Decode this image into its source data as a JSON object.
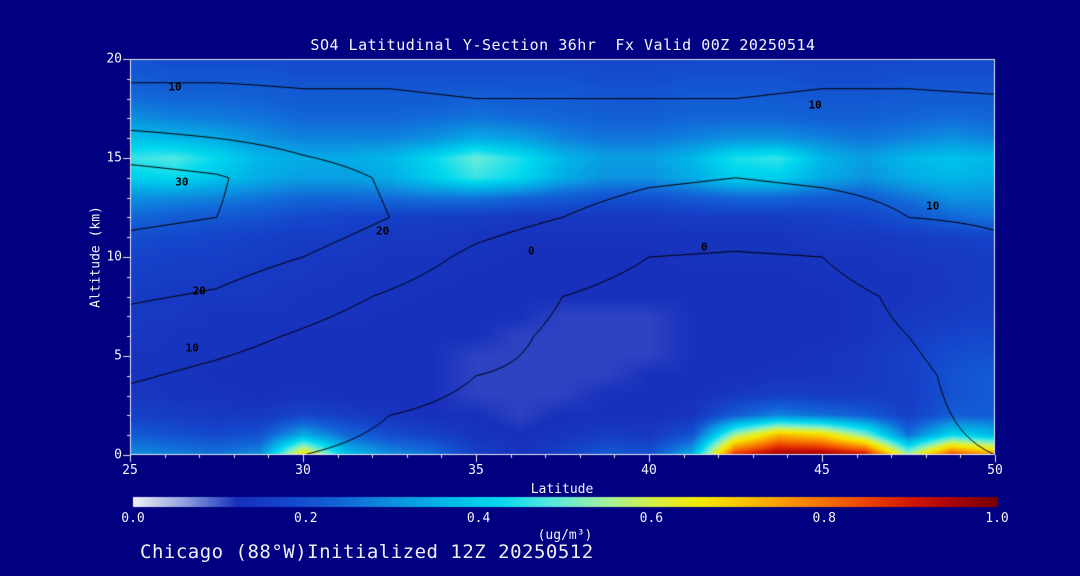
{
  "figure": {
    "bg_color": "#000080"
  },
  "chart_data": {
    "type": "heatmap",
    "title": "SO4 Latitudinal Y-Section 36hr  Fx Valid 00Z 20250514",
    "footer": "Chicago (88°W)Initialized 12Z 20250512",
    "xlabel": "Latitude",
    "ylabel": "Altitude (km)",
    "x_range": [
      25,
      50
    ],
    "y_range": [
      0,
      20
    ],
    "x_ticks": [
      25,
      30,
      35,
      40,
      45,
      50
    ],
    "x_tick_labels": [
      "25",
      "30",
      "35",
      "40",
      "45",
      "50"
    ],
    "y_ticks": [
      0,
      5,
      10,
      15,
      20
    ],
    "y_tick_labels": [
      "0",
      "5",
      "10",
      "15",
      "20"
    ],
    "x": [
      25,
      26.25,
      27.5,
      28.75,
      30,
      31.25,
      32.5,
      33.75,
      35,
      36.25,
      37.5,
      38.75,
      40,
      41.25,
      42.5,
      43.75,
      45,
      46.25,
      47.5,
      48.75,
      50
    ],
    "y": [
      0,
      1,
      2,
      3,
      4,
      5,
      6,
      7,
      8,
      9,
      10,
      11,
      12,
      13,
      14,
      15,
      16,
      17,
      18,
      19,
      20
    ],
    "values": [
      [
        0.3,
        0.28,
        0.26,
        0.3,
        0.68,
        0.38,
        0.3,
        0.26,
        0.16,
        0.13,
        0.16,
        0.22,
        0.2,
        0.35,
        0.88,
        0.97,
        0.97,
        0.92,
        0.55,
        0.85,
        0.75
      ],
      [
        0.22,
        0.2,
        0.18,
        0.2,
        0.34,
        0.24,
        0.19,
        0.16,
        0.13,
        0.12,
        0.13,
        0.15,
        0.14,
        0.2,
        0.55,
        0.72,
        0.68,
        0.52,
        0.25,
        0.42,
        0.36
      ],
      [
        0.16,
        0.15,
        0.14,
        0.14,
        0.17,
        0.15,
        0.13,
        0.12,
        0.12,
        0.11,
        0.12,
        0.12,
        0.12,
        0.13,
        0.22,
        0.28,
        0.25,
        0.22,
        0.16,
        0.22,
        0.22
      ],
      [
        0.14,
        0.13,
        0.13,
        0.12,
        0.13,
        0.12,
        0.12,
        0.12,
        0.11,
        0.11,
        0.11,
        0.12,
        0.12,
        0.12,
        0.14,
        0.16,
        0.15,
        0.15,
        0.15,
        0.2,
        0.22
      ],
      [
        0.13,
        0.13,
        0.12,
        0.12,
        0.12,
        0.12,
        0.12,
        0.12,
        0.11,
        0.11,
        0.11,
        0.11,
        0.12,
        0.12,
        0.12,
        0.13,
        0.13,
        0.14,
        0.16,
        0.2,
        0.22
      ],
      [
        0.13,
        0.13,
        0.13,
        0.12,
        0.12,
        0.12,
        0.12,
        0.12,
        0.11,
        0.11,
        0.11,
        0.11,
        0.11,
        0.12,
        0.12,
        0.12,
        0.13,
        0.14,
        0.16,
        0.19,
        0.2
      ],
      [
        0.14,
        0.13,
        0.13,
        0.13,
        0.12,
        0.12,
        0.12,
        0.12,
        0.12,
        0.11,
        0.11,
        0.11,
        0.11,
        0.12,
        0.12,
        0.12,
        0.12,
        0.13,
        0.15,
        0.17,
        0.18
      ],
      [
        0.14,
        0.14,
        0.13,
        0.13,
        0.13,
        0.13,
        0.12,
        0.12,
        0.12,
        0.12,
        0.11,
        0.11,
        0.11,
        0.12,
        0.12,
        0.12,
        0.12,
        0.13,
        0.14,
        0.15,
        0.16
      ],
      [
        0.15,
        0.14,
        0.14,
        0.14,
        0.13,
        0.13,
        0.13,
        0.12,
        0.12,
        0.12,
        0.12,
        0.12,
        0.12,
        0.12,
        0.12,
        0.12,
        0.12,
        0.13,
        0.13,
        0.14,
        0.15
      ],
      [
        0.16,
        0.15,
        0.15,
        0.14,
        0.14,
        0.13,
        0.13,
        0.13,
        0.12,
        0.12,
        0.12,
        0.12,
        0.12,
        0.12,
        0.12,
        0.12,
        0.13,
        0.13,
        0.13,
        0.14,
        0.15
      ],
      [
        0.17,
        0.16,
        0.16,
        0.15,
        0.14,
        0.14,
        0.13,
        0.13,
        0.13,
        0.12,
        0.12,
        0.12,
        0.12,
        0.13,
        0.13,
        0.13,
        0.13,
        0.13,
        0.14,
        0.14,
        0.15
      ],
      [
        0.19,
        0.18,
        0.17,
        0.16,
        0.15,
        0.15,
        0.14,
        0.14,
        0.13,
        0.13,
        0.13,
        0.13,
        0.13,
        0.13,
        0.13,
        0.13,
        0.14,
        0.14,
        0.15,
        0.16,
        0.17
      ],
      [
        0.24,
        0.22,
        0.21,
        0.2,
        0.18,
        0.17,
        0.16,
        0.15,
        0.15,
        0.14,
        0.14,
        0.14,
        0.14,
        0.15,
        0.15,
        0.15,
        0.16,
        0.17,
        0.2,
        0.24,
        0.26
      ],
      [
        0.3,
        0.29,
        0.28,
        0.26,
        0.24,
        0.24,
        0.25,
        0.26,
        0.26,
        0.24,
        0.22,
        0.2,
        0.2,
        0.22,
        0.24,
        0.24,
        0.22,
        0.22,
        0.26,
        0.3,
        0.3
      ],
      [
        0.4,
        0.42,
        0.38,
        0.34,
        0.32,
        0.32,
        0.34,
        0.4,
        0.46,
        0.42,
        0.34,
        0.3,
        0.3,
        0.34,
        0.4,
        0.4,
        0.34,
        0.3,
        0.34,
        0.36,
        0.34
      ],
      [
        0.46,
        0.48,
        0.42,
        0.36,
        0.34,
        0.34,
        0.36,
        0.42,
        0.5,
        0.44,
        0.36,
        0.32,
        0.32,
        0.36,
        0.44,
        0.46,
        0.36,
        0.32,
        0.36,
        0.38,
        0.36
      ],
      [
        0.38,
        0.36,
        0.34,
        0.3,
        0.28,
        0.28,
        0.28,
        0.3,
        0.34,
        0.32,
        0.28,
        0.26,
        0.26,
        0.28,
        0.3,
        0.3,
        0.28,
        0.26,
        0.28,
        0.3,
        0.28
      ],
      [
        0.3,
        0.28,
        0.27,
        0.26,
        0.24,
        0.24,
        0.24,
        0.25,
        0.26,
        0.25,
        0.24,
        0.23,
        0.23,
        0.24,
        0.24,
        0.24,
        0.23,
        0.23,
        0.24,
        0.25,
        0.24
      ],
      [
        0.25,
        0.24,
        0.24,
        0.23,
        0.22,
        0.22,
        0.22,
        0.22,
        0.23,
        0.22,
        0.22,
        0.21,
        0.21,
        0.22,
        0.22,
        0.22,
        0.21,
        0.21,
        0.22,
        0.22,
        0.22
      ],
      [
        0.22,
        0.21,
        0.21,
        0.21,
        0.2,
        0.2,
        0.2,
        0.2,
        0.2,
        0.2,
        0.2,
        0.19,
        0.19,
        0.2,
        0.2,
        0.2,
        0.19,
        0.19,
        0.2,
        0.2,
        0.2
      ],
      [
        0.2,
        0.19,
        0.19,
        0.19,
        0.18,
        0.18,
        0.18,
        0.18,
        0.18,
        0.18,
        0.18,
        0.18,
        0.18,
        0.18,
        0.18,
        0.18,
        0.18,
        0.18,
        0.18,
        0.18,
        0.18
      ]
    ],
    "colormap": [
      [
        0.0,
        "#f2f2f2"
      ],
      [
        0.06,
        "#8fa0de"
      ],
      [
        0.12,
        "#1830bc"
      ],
      [
        0.18,
        "#1448cc"
      ],
      [
        0.24,
        "#1266d8"
      ],
      [
        0.3,
        "#0c92e0"
      ],
      [
        0.36,
        "#00b8e8"
      ],
      [
        0.42,
        "#00d8ee"
      ],
      [
        0.48,
        "#52e8e2"
      ],
      [
        0.54,
        "#9cf0a8"
      ],
      [
        0.6,
        "#d6f048"
      ],
      [
        0.66,
        "#f6e800"
      ],
      [
        0.72,
        "#f8b800"
      ],
      [
        0.78,
        "#f88200"
      ],
      [
        0.84,
        "#f04c00"
      ],
      [
        0.9,
        "#d21800"
      ],
      [
        0.95,
        "#aa0404"
      ],
      [
        1.0,
        "#780000"
      ]
    ],
    "colorbar": {
      "ticks": [
        0,
        0.2,
        0.4,
        0.6,
        0.8,
        1.0
      ],
      "tick_labels": [
        "0.0",
        "0.2",
        "0.4",
        "0.6",
        "0.8",
        "1.0"
      ],
      "units": "(ug/m³)"
    },
    "overlay_contours": {
      "x": [
        25,
        27.5,
        30,
        32.5,
        35,
        37.5,
        40,
        42.5,
        45,
        47.5,
        50
      ],
      "y": [
        0,
        2,
        4,
        6,
        8,
        10,
        12,
        14,
        16,
        18,
        20
      ],
      "levels": [
        0,
        10,
        20,
        30
      ],
      "line_color": "#000000",
      "values": [
        [
          2,
          1,
          0,
          -1,
          -1,
          -2,
          -1,
          -1,
          -1,
          -1,
          0
        ],
        [
          6,
          4,
          2,
          0,
          -1,
          -1,
          -1,
          -2,
          -1,
          -1,
          1
        ],
        [
          11,
          8,
          5,
          2,
          0,
          -1,
          -2,
          -2,
          -2,
          -1,
          2
        ],
        [
          16,
          13,
          9,
          5,
          2,
          -1,
          -2,
          -3,
          -2,
          0,
          3
        ],
        [
          21,
          19,
          14,
          9,
          4,
          0,
          -2,
          -3,
          -2,
          1,
          5
        ],
        [
          26,
          24,
          20,
          15,
          8,
          3,
          0,
          -1,
          0,
          4,
          8
        ],
        [
          32,
          30,
          25,
          20,
          14,
          10,
          7,
          6,
          7,
          10,
          11
        ],
        [
          34,
          31,
          24,
          19,
          15,
          13,
          11,
          10,
          11,
          12,
          11
        ],
        [
          22,
          20,
          17,
          15,
          13,
          12,
          11,
          11,
          12,
          12,
          11
        ],
        [
          12,
          12,
          11,
          11,
          10,
          10,
          10,
          10,
          11,
          11,
          10.5
        ],
        [
          7,
          7,
          7,
          7,
          6,
          6,
          6,
          6,
          7,
          7,
          6
        ]
      ],
      "labels": [
        {
          "text": "10",
          "x": 26.3,
          "y": 18.6
        },
        {
          "text": "10",
          "x": 44.8,
          "y": 17.7
        },
        {
          "text": "30",
          "x": 26.5,
          "y": 13.8
        },
        {
          "text": "20",
          "x": 32.3,
          "y": 11.3
        },
        {
          "text": "20",
          "x": 27.0,
          "y": 8.3
        },
        {
          "text": "10",
          "x": 26.8,
          "y": 5.4
        },
        {
          "text": "0",
          "x": 36.6,
          "y": 10.3
        },
        {
          "text": "0",
          "x": 41.6,
          "y": 10.5
        },
        {
          "text": "10",
          "x": 48.2,
          "y": 12.6
        }
      ]
    }
  }
}
